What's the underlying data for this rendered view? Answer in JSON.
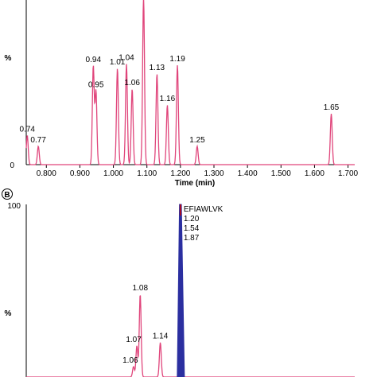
{
  "chart_data": [
    {
      "type": "line",
      "panel_label": "",
      "xlabel": "Time (min)",
      "ylabel": "%",
      "xlim": [
        0.74,
        1.72
      ],
      "ylim": [
        0,
        100
      ],
      "y_ticks": [
        "0"
      ],
      "x_ticks": [
        "0.800",
        "0.900",
        "1.000",
        "1.100",
        "1.200",
        "1.300",
        "1.400",
        "1.500",
        "1.600",
        "1.700"
      ],
      "color": "#e0457b",
      "series": [
        {
          "values": [
            {
              "x": 0.743,
              "y": 27,
              "label": "0.74"
            },
            {
              "x": 0.776,
              "y": 17,
              "label": "0.77"
            },
            {
              "x": 0.94,
              "y": 91,
              "label": "0.94"
            },
            {
              "x": 0.948,
              "y": 68,
              "label": "0.95"
            },
            {
              "x": 1.012,
              "y": 89,
              "label": "1.01"
            },
            {
              "x": 1.039,
              "y": 93,
              "label": "1.04"
            },
            {
              "x": 1.056,
              "y": 70,
              "label": "1.06"
            },
            {
              "x": 1.09,
              "y": 155,
              "label": ""
            },
            {
              "x": 1.13,
              "y": 84,
              "label": "1.13"
            },
            {
              "x": 1.161,
              "y": 55,
              "label": "1.16"
            },
            {
              "x": 1.191,
              "y": 92,
              "label": "1.19"
            },
            {
              "x": 1.25,
              "y": 17,
              "label": "1.25"
            },
            {
              "x": 1.65,
              "y": 47,
              "label": "1.65"
            }
          ]
        }
      ]
    },
    {
      "type": "line",
      "panel_label": "B",
      "xlabel": "",
      "ylabel": "%",
      "ylim": [
        0,
        100
      ],
      "y_ticks": [
        "100"
      ],
      "pink_color": "#e0457b",
      "blue_color": "#2b2fa0",
      "annotation": [
        "EFIAWLVK",
        "1.20",
        "1.54",
        "1.87"
      ],
      "series": [
        {
          "values": [
            {
              "x": 1.06,
              "y": 6,
              "label": "1.06"
            },
            {
              "x": 1.07,
              "y": 18,
              "label": "1.07"
            },
            {
              "x": 1.08,
              "y": 48,
              "label": "1.08"
            },
            {
              "x": 1.14,
              "y": 20,
              "label": "1.14"
            },
            {
              "x": 1.2,
              "y": 100,
              "label": ""
            }
          ]
        }
      ]
    }
  ]
}
